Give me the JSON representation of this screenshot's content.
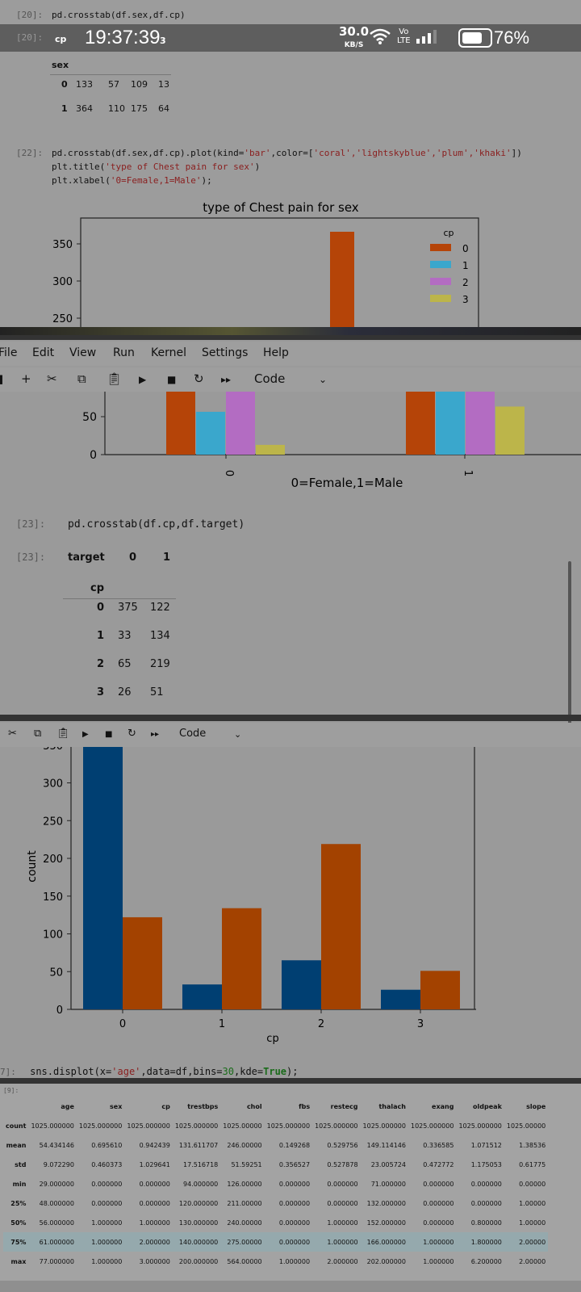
{
  "status_bar": {
    "time": "19:37:39",
    "net_speed": "30.0",
    "net_unit": "KB/S",
    "lte_top": "Vo",
    "lte_bottom": "LTE",
    "battery": "76%",
    "battery_level": 0.76
  },
  "cell20": {
    "prompt1": "[20]:",
    "code": "pd.crosstab(df.sex,df.cp)",
    "prompt2": "[20]:",
    "hdr_cp": "cp",
    "hdr_3": "3",
    "hdr_sex": "sex",
    "rows": [
      {
        "idx": "0",
        "v": [
          "133",
          "57",
          "109",
          "13"
        ]
      },
      {
        "idx": "1",
        "v": [
          "364",
          "110",
          "175",
          "64"
        ]
      }
    ]
  },
  "cell22": {
    "prompt": "[22]:",
    "line1_a": "pd.crosstab(df.sex,df.cp).plot(kind=",
    "line1_b": "'bar'",
    "line1_c": ",color=[",
    "line1_d": "'coral','lightskyblue','plum','khaki'",
    "line1_e": "])",
    "line2_a": "plt.title(",
    "line2_b": "'type of Chest pain for sex'",
    "line2_c": ")",
    "line3_a": "plt.xlabel(",
    "line3_b": "'0=Female,1=Male'",
    "line3_c": ");"
  },
  "chart1_top": {
    "title": "type of Chest pain for sex",
    "legend_title": "cp",
    "legend": [
      "0",
      "1",
      "2",
      "3"
    ],
    "ticks": [
      "350",
      "300",
      "250"
    ]
  },
  "menu": {
    "items": [
      "File",
      "Edit",
      "View",
      "Run",
      "Kernel",
      "Settings",
      "Help"
    ]
  },
  "toolbar": {
    "cell_type": "Code"
  },
  "chart1_bottom": {
    "ticks": [
      "50",
      "0"
    ],
    "xticks": [
      "0",
      "1"
    ],
    "xlabel": "0=Female,1=Male"
  },
  "cell23": {
    "prompt1": "[23]:",
    "code": "pd.crosstab(df.cp,df.target)",
    "prompt2": "[23]:",
    "hdr_target": "target",
    "hdr_0": "0",
    "hdr_1": "1",
    "hdr_cp": "cp",
    "rows": [
      {
        "idx": "0",
        "a": "375",
        "b": "122"
      },
      {
        "idx": "1",
        "a": "33",
        "b": "134"
      },
      {
        "idx": "2",
        "a": "65",
        "b": "219"
      },
      {
        "idx": "3",
        "a": "26",
        "b": "51"
      }
    ]
  },
  "toolbar2": {
    "cell_type": "Code"
  },
  "colors": {
    "coral": "#b54408",
    "blue": "#3aa7cc",
    "plum": "#b36cc2",
    "khaki": "#bcb54a",
    "navy": "#003f72",
    "orange": "#a34200"
  },
  "chart_data": [
    {
      "type": "bar",
      "title": "type of Chest pain for sex",
      "categories": [
        "0",
        "1"
      ],
      "xlabel": "0=Female,1=Male",
      "legend_title": "cp",
      "series": [
        {
          "name": "0",
          "values": [
            133,
            364
          ]
        },
        {
          "name": "1",
          "values": [
            57,
            110
          ]
        },
        {
          "name": "2",
          "values": [
            109,
            175
          ]
        },
        {
          "name": "3",
          "values": [
            13,
            64
          ]
        }
      ]
    },
    {
      "type": "bar",
      "categories": [
        "0",
        "1",
        "2",
        "3"
      ],
      "xlabel": "cp",
      "ylabel": "count",
      "ylim": [
        0,
        350
      ],
      "yticks": [
        "0",
        "50",
        "100",
        "150",
        "200",
        "250",
        "300",
        "350"
      ],
      "series": [
        {
          "values": [
            375,
            33,
            65,
            26
          ]
        },
        {
          "values": [
            122,
            134,
            219,
            51
          ]
        }
      ]
    }
  ],
  "cell_displot": {
    "prompt": "7]:",
    "code_a": "sns.displot(x=",
    "code_b": "'age'",
    "code_c": ",data=df,bins=",
    "code_d": "30",
    "code_e": ",kde=",
    "code_f": "True",
    "code_g": ");"
  },
  "describe": {
    "prompt": "[9]:",
    "columns": [
      "",
      "age",
      "sex",
      "cp",
      "trestbps",
      "chol",
      "fbs",
      "restecg",
      "thalach",
      "exang",
      "oldpeak",
      "slope"
    ],
    "rows": [
      [
        "count",
        "1025.000000",
        "1025.000000",
        "1025.000000",
        "1025.000000",
        "1025.00000",
        "1025.000000",
        "1025.000000",
        "1025.000000",
        "1025.000000",
        "1025.000000",
        "1025.00000"
      ],
      [
        "mean",
        "54.434146",
        "0.695610",
        "0.942439",
        "131.611707",
        "246.00000",
        "0.149268",
        "0.529756",
        "149.114146",
        "0.336585",
        "1.071512",
        "1.38536"
      ],
      [
        "std",
        "9.072290",
        "0.460373",
        "1.029641",
        "17.516718",
        "51.59251",
        "0.356527",
        "0.527878",
        "23.005724",
        "0.472772",
        "1.175053",
        "0.61775"
      ],
      [
        "min",
        "29.000000",
        "0.000000",
        "0.000000",
        "94.000000",
        "126.00000",
        "0.000000",
        "0.000000",
        "71.000000",
        "0.000000",
        "0.000000",
        "0.00000"
      ],
      [
        "25%",
        "48.000000",
        "0.000000",
        "0.000000",
        "120.000000",
        "211.00000",
        "0.000000",
        "0.000000",
        "132.000000",
        "0.000000",
        "0.000000",
        "1.00000"
      ],
      [
        "50%",
        "56.000000",
        "1.000000",
        "1.000000",
        "130.000000",
        "240.00000",
        "0.000000",
        "1.000000",
        "152.000000",
        "0.000000",
        "0.800000",
        "1.00000"
      ],
      [
        "75%",
        "61.000000",
        "1.000000",
        "2.000000",
        "140.000000",
        "275.00000",
        "0.000000",
        "1.000000",
        "166.000000",
        "1.000000",
        "1.800000",
        "2.00000"
      ],
      [
        "max",
        "77.000000",
        "1.000000",
        "3.000000",
        "200.000000",
        "564.00000",
        "1.000000",
        "2.000000",
        "202.000000",
        "1.000000",
        "6.200000",
        "2.00000"
      ]
    ]
  }
}
